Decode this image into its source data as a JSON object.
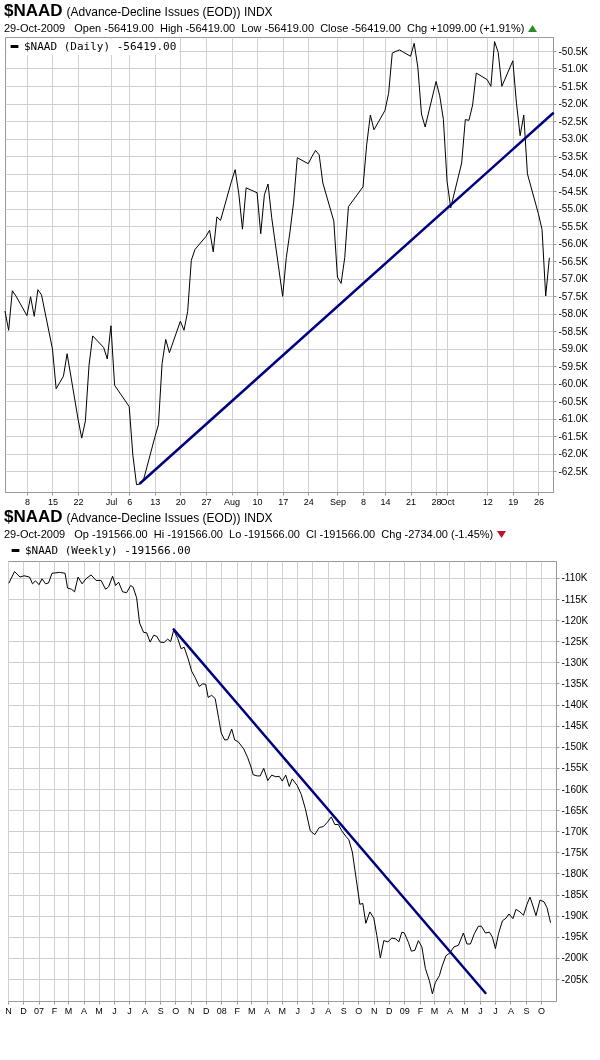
{
  "chart_data": [
    {
      "type": "line",
      "title": "$NAAD",
      "subtitle": "(Advance-Decline Issues (EOD)) INDX",
      "annotations": [
        "29-Oct-2009   Open -56419.00  High -56419.00  Low -56419.00  Close -56419.00  Chg +1099.00 (+1.91%)"
      ],
      "x": [
        "2009-06-02",
        "2009-06-03",
        "2009-06-04",
        "2009-06-05",
        "2009-06-08",
        "2009-06-09",
        "2009-06-10",
        "2009-06-11",
        "2009-06-12",
        "2009-06-15",
        "2009-06-16",
        "2009-06-17",
        "2009-06-18",
        "2009-06-19",
        "2009-06-22",
        "2009-06-23",
        "2009-06-24",
        "2009-06-25",
        "2009-06-26",
        "2009-06-29",
        "2009-06-30",
        "2009-07-01",
        "2009-07-02",
        "2009-07-06",
        "2009-07-07",
        "2009-07-08",
        "2009-07-09",
        "2009-07-10",
        "2009-07-13",
        "2009-07-14",
        "2009-07-15",
        "2009-07-16",
        "2009-07-17",
        "2009-07-20",
        "2009-07-21",
        "2009-07-22",
        "2009-07-23",
        "2009-07-24",
        "2009-07-27",
        "2009-07-28",
        "2009-07-29",
        "2009-07-30",
        "2009-07-31",
        "2009-08-03",
        "2009-08-04",
        "2009-08-05",
        "2009-08-06",
        "2009-08-07",
        "2009-08-10",
        "2009-08-11",
        "2009-08-12",
        "2009-08-13",
        "2009-08-14",
        "2009-08-17",
        "2009-08-18",
        "2009-08-19",
        "2009-08-20",
        "2009-08-21",
        "2009-08-24",
        "2009-08-25",
        "2009-08-26",
        "2009-08-27",
        "2009-08-28",
        "2009-08-31",
        "2009-09-01",
        "2009-09-02",
        "2009-09-03",
        "2009-09-04",
        "2009-09-08",
        "2009-09-09",
        "2009-09-10",
        "2009-09-11",
        "2009-09-14",
        "2009-09-15",
        "2009-09-16",
        "2009-09-17",
        "2009-09-18",
        "2009-09-21",
        "2009-09-22",
        "2009-09-23",
        "2009-09-24",
        "2009-09-25",
        "2009-09-28",
        "2009-09-29",
        "2009-09-30",
        "2009-10-01",
        "2009-10-02",
        "2009-10-05",
        "2009-10-06",
        "2009-10-07",
        "2009-10-08",
        "2009-10-09",
        "2009-10-12",
        "2009-10-13",
        "2009-10-14",
        "2009-10-15",
        "2009-10-16",
        "2009-10-19",
        "2009-10-20",
        "2009-10-21",
        "2009-10-22",
        "2009-10-23",
        "2009-10-26",
        "2009-10-27",
        "2009-10-28",
        "2009-10-29"
      ],
      "series": [
        {
          "name": "$NAAD (Daily) -56419.00",
          "color": "#000000",
          "values": [
            -57940,
            -58480,
            -57350,
            -57500,
            -58060,
            -57520,
            -58080,
            -57320,
            -57470,
            -59020,
            -60150,
            -59970,
            -59790,
            -59150,
            -61020,
            -61560,
            -61070,
            -59480,
            -58640,
            -58970,
            -59300,
            -58350,
            -60050,
            -60660,
            -62050,
            -62890,
            -62870,
            -62720,
            -61540,
            -61180,
            -59430,
            -58740,
            -59120,
            -58220,
            -58480,
            -57940,
            -56480,
            -56170,
            -55800,
            -55620,
            -56240,
            -55240,
            -55340,
            -54220,
            -53890,
            -54580,
            -55590,
            -54410,
            -54550,
            -55720,
            -54610,
            -54300,
            -55260,
            -57510,
            -56400,
            -55670,
            -54820,
            -53550,
            -53720,
            -53520,
            -53340,
            -53470,
            -54270,
            -55360,
            -56960,
            -57140,
            -56400,
            -54950,
            -54380,
            -53180,
            -52330,
            -52750,
            -52200,
            -51710,
            -50560,
            -50510,
            -50470,
            -50650,
            -50280,
            -50960,
            -52300,
            -52670,
            -51370,
            -51780,
            -52460,
            -54220,
            -54980,
            -53700,
            -52460,
            -52480,
            -52040,
            -51130,
            -51320,
            -51510,
            -50230,
            -50540,
            -51510,
            -50780,
            -51990,
            -52920,
            -52330,
            -54010,
            -55150,
            -55600,
            -57500,
            -56419
          ]
        },
        {
          "type": "line",
          "color": "#000080",
          "x": [
            "2009-07-09",
            "2009-10-30"
          ],
          "values": [
            -62850,
            -52280
          ]
        }
      ],
      "xlim": [
        "2009-06-02",
        "2009-10-30"
      ],
      "ylim": [
        -63100,
        -50100
      ],
      "xticks": [
        {
          "value": "2009-06-08",
          "label": "8"
        },
        {
          "value": "2009-06-15",
          "label": "15"
        },
        {
          "value": "2009-06-22",
          "label": "22"
        },
        {
          "value": "2009-07-01",
          "label": "Jul"
        },
        {
          "value": "2009-07-06",
          "label": "6"
        },
        {
          "value": "2009-07-13",
          "label": "13"
        },
        {
          "value": "2009-07-20",
          "label": "20"
        },
        {
          "value": "2009-07-27",
          "label": "27"
        },
        {
          "value": "2009-08-03",
          "label": "Aug"
        },
        {
          "value": "2009-08-10",
          "label": "10"
        },
        {
          "value": "2009-08-17",
          "label": "17"
        },
        {
          "value": "2009-08-24",
          "label": "24"
        },
        {
          "value": "2009-09-01",
          "label": "Sep"
        },
        {
          "value": "2009-09-08",
          "label": "8"
        },
        {
          "value": "2009-09-14",
          "label": "14"
        },
        {
          "value": "2009-09-21",
          "label": "21"
        },
        {
          "value": "2009-09-28",
          "label": "28"
        },
        {
          "value": "2009-10-01",
          "label": "Oct"
        },
        {
          "value": "2009-10-12",
          "label": "12"
        },
        {
          "value": "2009-10-19",
          "label": "19"
        },
        {
          "value": "2009-10-26",
          "label": "26"
        }
      ],
      "yticks": [
        {
          "value": -50500,
          "label": "-50.5K"
        },
        {
          "value": -51000,
          "label": "-51.0K"
        },
        {
          "value": -51500,
          "label": "-51.5K"
        },
        {
          "value": -52000,
          "label": "-52.0K"
        },
        {
          "value": -52500,
          "label": "-52.5K"
        },
        {
          "value": -53000,
          "label": "-53.0K"
        },
        {
          "value": -53500,
          "label": "-53.5K"
        },
        {
          "value": -54000,
          "label": "-54.0K"
        },
        {
          "value": -54500,
          "label": "-54.5K"
        },
        {
          "value": -55000,
          "label": "-55.0K"
        },
        {
          "value": -55500,
          "label": "-55.5K"
        },
        {
          "value": -56000,
          "label": "-56.0K"
        },
        {
          "value": -56500,
          "label": "-56.5K"
        },
        {
          "value": -57000,
          "label": "-57.0K"
        },
        {
          "value": -57500,
          "label": "-57.5K"
        },
        {
          "value": -58000,
          "label": "-58.0K"
        },
        {
          "value": -58500,
          "label": "-58.5K"
        },
        {
          "value": -59000,
          "label": "-59.0K"
        },
        {
          "value": -59500,
          "label": "-59.5K"
        },
        {
          "value": -60000,
          "label": "-60.0K"
        },
        {
          "value": -60500,
          "label": "-60.5K"
        },
        {
          "value": -61000,
          "label": "-61.0K"
        },
        {
          "value": -61500,
          "label": "-61.5K"
        },
        {
          "value": -62000,
          "label": "-62.0K"
        },
        {
          "value": -62500,
          "label": "-62.5K"
        }
      ],
      "grid": true,
      "legend": "top left"
    },
    {
      "type": "line",
      "title": "$NAAD",
      "subtitle": "(Advance-Decline Issues (EOD)) INDX",
      "annotations": [
        "29-Oct-2009   Op -191566.00  Hi -191566.00  Lo -191566.00  Cl -191566.00  Chg -2734.00 (-1.45%)"
      ],
      "x": [
        "2006-11-03",
        "2006-11-14",
        "2006-11-25",
        "2006-12-03",
        "2006-12-14",
        "2006-12-20",
        "2006-12-26",
        "2007-01-02",
        "2007-01-08",
        "2007-01-15",
        "2007-01-21",
        "2007-01-28",
        "2007-02-05",
        "2007-02-12",
        "2007-02-23",
        "2007-02-28",
        "2007-03-08",
        "2007-03-14",
        "2007-03-21",
        "2007-03-29",
        "2007-04-06",
        "2007-04-16",
        "2007-04-26",
        "2007-05-06",
        "2007-05-15",
        "2007-05-21",
        "2007-05-29",
        "2007-06-04",
        "2007-06-10",
        "2007-06-18",
        "2007-06-26",
        "2007-07-04",
        "2007-07-09",
        "2007-07-16",
        "2007-07-22",
        "2007-07-30",
        "2007-08-05",
        "2007-08-12",
        "2007-08-19",
        "2007-08-25",
        "2007-09-01",
        "2007-09-09",
        "2007-09-16",
        "2007-09-22",
        "2007-09-28",
        "2007-10-06",
        "2007-10-13",
        "2007-10-19",
        "2007-10-27",
        "2007-11-03",
        "2007-11-10",
        "2007-11-18",
        "2007-11-25",
        "2007-12-01",
        "2007-12-06",
        "2007-12-13",
        "2007-12-20",
        "2007-12-27",
        "2008-01-01",
        "2008-01-08",
        "2008-01-14",
        "2008-01-22",
        "2008-01-28",
        "2008-02-04",
        "2008-02-15",
        "2008-02-23",
        "2008-02-29",
        "2008-03-05",
        "2008-03-13",
        "2008-03-19",
        "2008-03-26",
        "2008-04-03",
        "2008-04-11",
        "2008-04-19",
        "2008-04-26",
        "2008-05-02",
        "2008-05-09",
        "2008-05-16",
        "2008-05-22",
        "2008-06-01",
        "2008-06-09",
        "2008-06-17",
        "2008-06-27",
        "2008-07-06",
        "2008-07-15",
        "2008-07-23",
        "2008-07-31",
        "2008-08-08",
        "2008-08-15",
        "2008-08-22",
        "2008-08-29",
        "2008-09-06",
        "2008-09-12",
        "2008-09-19",
        "2008-09-27",
        "2008-10-04",
        "2008-10-10",
        "2008-10-16",
        "2008-10-24",
        "2008-11-01",
        "2008-11-07",
        "2008-11-14",
        "2008-11-21",
        "2008-11-29",
        "2008-12-07",
        "2008-12-15",
        "2008-12-21",
        "2008-12-27",
        "2009-01-01",
        "2009-01-09",
        "2009-01-15",
        "2009-01-22",
        "2009-01-29",
        "2009-02-05",
        "2009-02-12",
        "2009-02-20",
        "2009-02-26",
        "2009-03-04",
        "2009-03-12",
        "2009-03-17",
        "2009-03-25",
        "2009-04-02",
        "2009-04-10",
        "2009-04-19",
        "2009-04-29",
        "2009-05-06",
        "2009-05-13",
        "2009-05-21",
        "2009-05-29",
        "2009-06-04",
        "2009-06-12",
        "2009-06-20",
        "2009-06-26",
        "2009-07-02",
        "2009-07-08",
        "2009-07-16",
        "2009-07-23",
        "2009-07-29",
        "2009-08-06",
        "2009-08-12",
        "2009-08-20",
        "2009-08-27",
        "2009-09-03",
        "2009-09-09",
        "2009-09-15",
        "2009-09-21",
        "2009-09-29",
        "2009-10-07",
        "2009-10-13",
        "2009-10-20"
      ],
      "series": [
        {
          "name": "$NAAD (Weekly) -191566.00",
          "color": "#000000",
          "values": [
            -111200,
            -108500,
            -109800,
            -109500,
            -109800,
            -111400,
            -110700,
            -111600,
            -110200,
            -111400,
            -111200,
            -108900,
            -108800,
            -108700,
            -108900,
            -112400,
            -112700,
            -113300,
            -109800,
            -111400,
            -110200,
            -109300,
            -110600,
            -110600,
            -112700,
            -112100,
            -109600,
            -111800,
            -111000,
            -113300,
            -113500,
            -111800,
            -112200,
            -114700,
            -120700,
            -122900,
            -123000,
            -125200,
            -123600,
            -123800,
            -125200,
            -125300,
            -124500,
            -125100,
            -122400,
            -124300,
            -126800,
            -126400,
            -129200,
            -132100,
            -133600,
            -135700,
            -135100,
            -135200,
            -138300,
            -137800,
            -138600,
            -143300,
            -146700,
            -148400,
            -148300,
            -145800,
            -148400,
            -148800,
            -150500,
            -152600,
            -154600,
            -156600,
            -156900,
            -156900,
            -155100,
            -158000,
            -156700,
            -157100,
            -157000,
            -158100,
            -156700,
            -159400,
            -157600,
            -159200,
            -161300,
            -164600,
            -169900,
            -170800,
            -169100,
            -168900,
            -167900,
            -166600,
            -168400,
            -168400,
            -169900,
            -171200,
            -172000,
            -174900,
            -181500,
            -187300,
            -187100,
            -191800,
            -189100,
            -190600,
            -194700,
            -200000,
            -195900,
            -196200,
            -195300,
            -195500,
            -196200,
            -193900,
            -194100,
            -196300,
            -198400,
            -198200,
            -195900,
            -197400,
            -202500,
            -205400,
            -208500,
            -205800,
            -204200,
            -202100,
            -199500,
            -198800,
            -197400,
            -197000,
            -194100,
            -196700,
            -196700,
            -194200,
            -192500,
            -192500,
            -194100,
            -193900,
            -195100,
            -197800,
            -194300,
            -191200,
            -190600,
            -189600,
            -190700,
            -188500,
            -189100,
            -189900,
            -187300,
            -185600,
            -187700,
            -190000,
            -186300,
            -186700,
            -188100,
            -191566
          ]
        },
        {
          "type": "line",
          "color": "#000080",
          "x": [
            "2007-09-28",
            "2009-06-12"
          ],
          "values": [
            -122200,
            -208300
          ]
        }
      ],
      "xlim": [
        "2006-11-01",
        "2009-10-31"
      ],
      "ylim": [
        -210200,
        -106000
      ],
      "xticks": [
        {
          "value": "2006-11-01",
          "label": "N"
        },
        {
          "value": "2006-12-01",
          "label": "D"
        },
        {
          "value": "2007-01-01",
          "label": "07"
        },
        {
          "value": "2007-02-01",
          "label": "F"
        },
        {
          "value": "2007-03-01",
          "label": "M"
        },
        {
          "value": "2007-04-01",
          "label": "A"
        },
        {
          "value": "2007-05-01",
          "label": "M"
        },
        {
          "value": "2007-06-01",
          "label": "J"
        },
        {
          "value": "2007-07-01",
          "label": "J"
        },
        {
          "value": "2007-08-01",
          "label": "A"
        },
        {
          "value": "2007-09-01",
          "label": "S"
        },
        {
          "value": "2007-10-01",
          "label": "O"
        },
        {
          "value": "2007-11-01",
          "label": "N"
        },
        {
          "value": "2007-12-01",
          "label": "D"
        },
        {
          "value": "2008-01-01",
          "label": "08"
        },
        {
          "value": "2008-02-01",
          "label": "F"
        },
        {
          "value": "2008-03-01",
          "label": "M"
        },
        {
          "value": "2008-04-01",
          "label": "A"
        },
        {
          "value": "2008-05-01",
          "label": "M"
        },
        {
          "value": "2008-06-01",
          "label": "J"
        },
        {
          "value": "2008-07-01",
          "label": "J"
        },
        {
          "value": "2008-08-01",
          "label": "A"
        },
        {
          "value": "2008-09-01",
          "label": "S"
        },
        {
          "value": "2008-10-01",
          "label": "O"
        },
        {
          "value": "2008-11-01",
          "label": "N"
        },
        {
          "value": "2008-12-01",
          "label": "D"
        },
        {
          "value": "2009-01-01",
          "label": "09"
        },
        {
          "value": "2009-02-01",
          "label": "F"
        },
        {
          "value": "2009-03-01",
          "label": "M"
        },
        {
          "value": "2009-04-01",
          "label": "A"
        },
        {
          "value": "2009-05-01",
          "label": "M"
        },
        {
          "value": "2009-06-01",
          "label": "J"
        },
        {
          "value": "2009-07-01",
          "label": "J"
        },
        {
          "value": "2009-08-01",
          "label": "A"
        },
        {
          "value": "2009-09-01",
          "label": "S"
        },
        {
          "value": "2009-10-01",
          "label": "O"
        }
      ],
      "yticks": [
        {
          "value": -110000,
          "label": "-110K"
        },
        {
          "value": -115000,
          "label": "-115K"
        },
        {
          "value": -120000,
          "label": "-120K"
        },
        {
          "value": -125000,
          "label": "-125K"
        },
        {
          "value": -130000,
          "label": "-130K"
        },
        {
          "value": -135000,
          "label": "-135K"
        },
        {
          "value": -140000,
          "label": "-140K"
        },
        {
          "value": -145000,
          "label": "-145K"
        },
        {
          "value": -150000,
          "label": "-150K"
        },
        {
          "value": -155000,
          "label": "-155K"
        },
        {
          "value": -160000,
          "label": "-160K"
        },
        {
          "value": -165000,
          "label": "-165K"
        },
        {
          "value": -170000,
          "label": "-170K"
        },
        {
          "value": -175000,
          "label": "-175K"
        },
        {
          "value": -180000,
          "label": "-180K"
        },
        {
          "value": -185000,
          "label": "-185K"
        },
        {
          "value": -190000,
          "label": "-190K"
        },
        {
          "value": -195000,
          "label": "-195K"
        },
        {
          "value": -200000,
          "label": "-200K"
        },
        {
          "value": -205000,
          "label": "-205K"
        }
      ],
      "grid": true,
      "legend": "top"
    }
  ]
}
